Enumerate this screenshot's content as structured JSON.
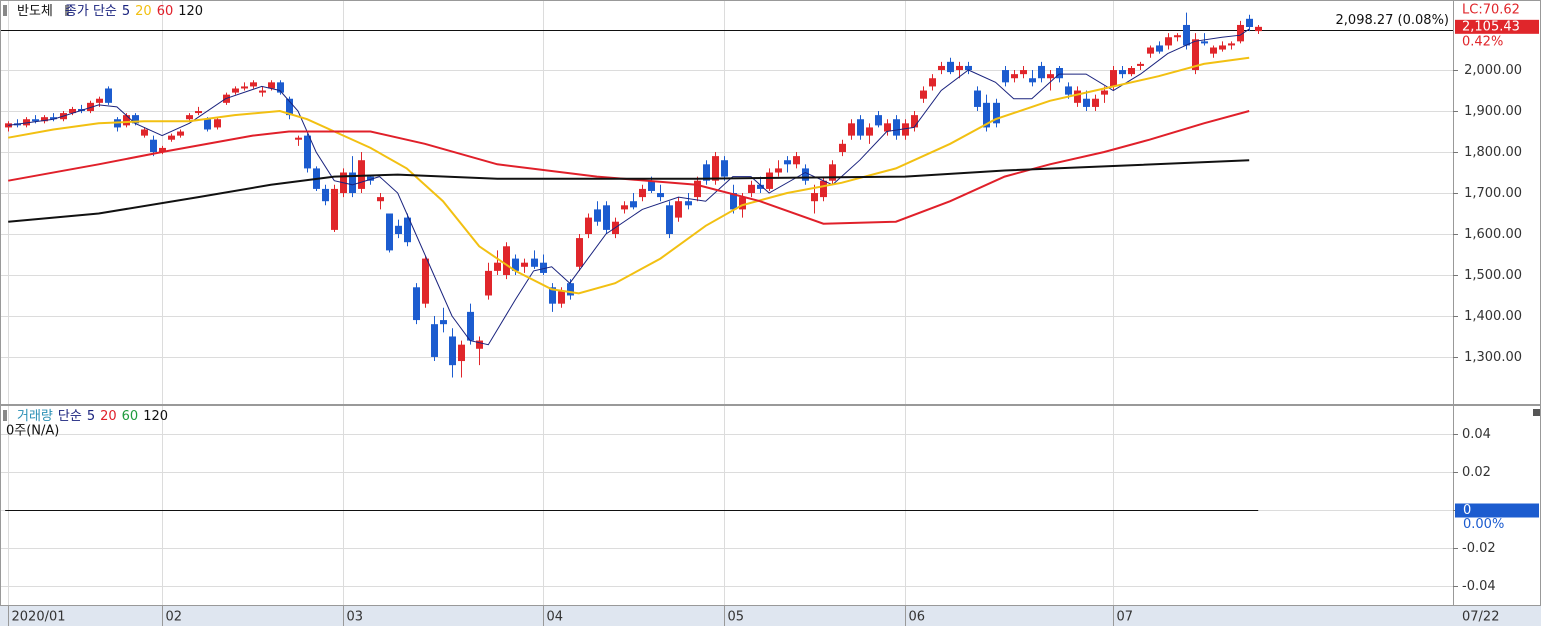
{
  "chart_data": {
    "type": "candlestick",
    "title": "반도체",
    "legend_prefix": "종가 단순",
    "up_color": "#e0262b",
    "down_color": "#1c5ccf",
    "xlim": [
      -0.9,
      159.5
    ],
    "xticks": [
      {
        "value": 0,
        "label": "2020/01"
      },
      {
        "value": 17,
        "label": "02"
      },
      {
        "value": 37,
        "label": "03"
      },
      {
        "value": 59,
        "label": "04"
      },
      {
        "value": 79,
        "label": "05"
      },
      {
        "value": 99,
        "label": "06"
      },
      {
        "value": 122,
        "label": "07"
      }
    ],
    "last_date": "07/22",
    "ylim": [
      1195,
      2166
    ],
    "yticks": [
      {
        "value": 1300,
        "label": "1,300.00"
      },
      {
        "value": 1400,
        "label": "1,400.00"
      },
      {
        "value": 1500,
        "label": "1,500.00"
      },
      {
        "value": 1600,
        "label": "1,600.00"
      },
      {
        "value": 1700,
        "label": "1,700.00"
      },
      {
        "value": 1800,
        "label": "1,800.00"
      },
      {
        "value": 1900,
        "label": "1,900.00"
      },
      {
        "value": 2000,
        "label": "2,000.00"
      }
    ],
    "grid": true,
    "ref_line": {
      "value": 2098.27,
      "label": "2,098.27 (0.08%)"
    },
    "lc_label": "LC:70.62",
    "last_price": {
      "value": 2105.43,
      "label": "2,105.43"
    },
    "change_label": "0.42%",
    "ohlc": [
      [
        1860,
        1875,
        1850,
        1870
      ],
      [
        1870,
        1880,
        1860,
        1865
      ],
      [
        1865,
        1885,
        1860,
        1880
      ],
      [
        1880,
        1890,
        1870,
        1875
      ],
      [
        1875,
        1890,
        1870,
        1885
      ],
      [
        1885,
        1895,
        1875,
        1880
      ],
      [
        1880,
        1900,
        1875,
        1895
      ],
      [
        1895,
        1910,
        1890,
        1905
      ],
      [
        1905,
        1915,
        1895,
        1900
      ],
      [
        1900,
        1925,
        1895,
        1920
      ],
      [
        1920,
        1935,
        1910,
        1930
      ],
      [
        1955,
        1960,
        1915,
        1920
      ],
      [
        1880,
        1885,
        1850,
        1860
      ],
      [
        1865,
        1895,
        1860,
        1890
      ],
      [
        1890,
        1895,
        1865,
        1870
      ],
      [
        1840,
        1860,
        1835,
        1855
      ],
      [
        1830,
        1840,
        1790,
        1800
      ],
      [
        1800,
        1815,
        1795,
        1810
      ],
      [
        1830,
        1845,
        1825,
        1840
      ],
      [
        1840,
        1855,
        1835,
        1850
      ],
      [
        1880,
        1895,
        1875,
        1890
      ],
      [
        1895,
        1910,
        1890,
        1900
      ],
      [
        1880,
        1885,
        1850,
        1855
      ],
      [
        1860,
        1885,
        1855,
        1880
      ],
      [
        1920,
        1945,
        1915,
        1940
      ],
      [
        1945,
        1960,
        1940,
        1955
      ],
      [
        1955,
        1970,
        1950,
        1960
      ],
      [
        1960,
        1975,
        1955,
        1970
      ],
      [
        1945,
        1960,
        1935,
        1950
      ],
      [
        1955,
        1975,
        1950,
        1970
      ],
      [
        1970,
        1975,
        1940,
        1945
      ],
      [
        1930,
        1935,
        1880,
        1890
      ],
      [
        1830,
        1840,
        1815,
        1835
      ],
      [
        1840,
        1845,
        1750,
        1760
      ],
      [
        1760,
        1765,
        1705,
        1710
      ],
      [
        1710,
        1720,
        1670,
        1680
      ],
      [
        1610,
        1720,
        1605,
        1710
      ],
      [
        1700,
        1760,
        1690,
        1750
      ],
      [
        1750,
        1790,
        1690,
        1700
      ],
      [
        1710,
        1800,
        1700,
        1780
      ],
      [
        1740,
        1745,
        1720,
        1730
      ],
      [
        1680,
        1700,
        1660,
        1690
      ],
      [
        1650,
        1650,
        1555,
        1560
      ],
      [
        1620,
        1635,
        1590,
        1600
      ],
      [
        1640,
        1650,
        1570,
        1580
      ],
      [
        1470,
        1480,
        1380,
        1390
      ],
      [
        1430,
        1545,
        1420,
        1540
      ],
      [
        1380,
        1400,
        1290,
        1300
      ],
      [
        1390,
        1420,
        1360,
        1380
      ],
      [
        1350,
        1370,
        1250,
        1280
      ],
      [
        1290,
        1340,
        1250,
        1330
      ],
      [
        1410,
        1430,
        1330,
        1340
      ],
      [
        1320,
        1350,
        1280,
        1340
      ],
      [
        1450,
        1530,
        1440,
        1510
      ],
      [
        1510,
        1560,
        1500,
        1530
      ],
      [
        1500,
        1580,
        1490,
        1570
      ],
      [
        1540,
        1550,
        1500,
        1510
      ],
      [
        1520,
        1540,
        1505,
        1530
      ],
      [
        1540,
        1560,
        1515,
        1520
      ],
      [
        1530,
        1550,
        1500,
        1505
      ],
      [
        1470,
        1480,
        1410,
        1430
      ],
      [
        1430,
        1470,
        1420,
        1460
      ],
      [
        1480,
        1490,
        1440,
        1450
      ],
      [
        1520,
        1600,
        1510,
        1590
      ],
      [
        1600,
        1650,
        1590,
        1640
      ],
      [
        1660,
        1680,
        1620,
        1630
      ],
      [
        1670,
        1680,
        1600,
        1610
      ],
      [
        1600,
        1640,
        1590,
        1630
      ],
      [
        1660,
        1680,
        1650,
        1670
      ],
      [
        1680,
        1700,
        1660,
        1665
      ],
      [
        1690,
        1720,
        1680,
        1710
      ],
      [
        1730,
        1740,
        1700,
        1705
      ],
      [
        1700,
        1720,
        1680,
        1690
      ],
      [
        1670,
        1680,
        1590,
        1600
      ],
      [
        1640,
        1690,
        1630,
        1680
      ],
      [
        1680,
        1700,
        1660,
        1670
      ],
      [
        1690,
        1740,
        1680,
        1730
      ],
      [
        1770,
        1780,
        1720,
        1730
      ],
      [
        1730,
        1800,
        1720,
        1790
      ],
      [
        1780,
        1790,
        1730,
        1740
      ],
      [
        1700,
        1720,
        1650,
        1660
      ],
      [
        1660,
        1700,
        1640,
        1690
      ],
      [
        1700,
        1730,
        1690,
        1720
      ],
      [
        1720,
        1740,
        1700,
        1710
      ],
      [
        1710,
        1760,
        1705,
        1750
      ],
      [
        1750,
        1780,
        1740,
        1760
      ],
      [
        1780,
        1790,
        1750,
        1770
      ],
      [
        1770,
        1800,
        1760,
        1790
      ],
      [
        1760,
        1770,
        1720,
        1730
      ],
      [
        1680,
        1720,
        1650,
        1700
      ],
      [
        1690,
        1740,
        1680,
        1730
      ],
      [
        1730,
        1780,
        1720,
        1770
      ],
      [
        1800,
        1830,
        1790,
        1820
      ],
      [
        1840,
        1880,
        1830,
        1870
      ],
      [
        1880,
        1890,
        1830,
        1840
      ],
      [
        1840,
        1870,
        1820,
        1860
      ],
      [
        1890,
        1900,
        1860,
        1865
      ],
      [
        1850,
        1880,
        1840,
        1870
      ],
      [
        1880,
        1890,
        1830,
        1840
      ],
      [
        1840,
        1880,
        1830,
        1870
      ],
      [
        1860,
        1900,
        1850,
        1890
      ],
      [
        1930,
        1960,
        1920,
        1950
      ],
      [
        1960,
        1990,
        1950,
        1980
      ],
      [
        2000,
        2020,
        1990,
        2010
      ],
      [
        2020,
        2030,
        1990,
        1995
      ],
      [
        2000,
        2020,
        1980,
        2010
      ],
      [
        2010,
        2020,
        1990,
        2000
      ],
      [
        1950,
        1960,
        1900,
        1910
      ],
      [
        1920,
        1940,
        1850,
        1860
      ],
      [
        1920,
        1930,
        1860,
        1870
      ],
      [
        2000,
        2010,
        1960,
        1970
      ],
      [
        1980,
        2000,
        1970,
        1990
      ],
      [
        1990,
        2010,
        1980,
        2000
      ],
      [
        1980,
        2000,
        1960,
        1970
      ],
      [
        2010,
        2020,
        1970,
        1980
      ],
      [
        1980,
        2000,
        1950,
        1990
      ],
      [
        2005,
        2010,
        1970,
        1980
      ],
      [
        1960,
        1970,
        1930,
        1940
      ],
      [
        1920,
        1960,
        1910,
        1950
      ],
      [
        1930,
        1950,
        1900,
        1910
      ],
      [
        1910,
        1940,
        1900,
        1930
      ],
      [
        1940,
        1960,
        1920,
        1950
      ],
      [
        1960,
        2010,
        1950,
        2000
      ],
      [
        2000,
        2010,
        1980,
        1990
      ],
      [
        1990,
        2010,
        1985,
        2005
      ],
      [
        2010,
        2020,
        2000,
        2015
      ],
      [
        2040,
        2060,
        2030,
        2055
      ],
      [
        2060,
        2070,
        2040,
        2045
      ],
      [
        2060,
        2090,
        2050,
        2080
      ],
      [
        2080,
        2090,
        2070,
        2085
      ],
      [
        2110,
        2140,
        2050,
        2060
      ],
      [
        2000,
        2090,
        1990,
        2075
      ],
      [
        2070,
        2090,
        2060,
        2065
      ],
      [
        2040,
        2060,
        2030,
        2055
      ],
      [
        2050,
        2070,
        2045,
        2060
      ],
      [
        2060,
        2070,
        2050,
        2065
      ],
      [
        2070,
        2120,
        2065,
        2110
      ],
      [
        2125,
        2135,
        2095,
        2105
      ],
      [
        2095,
        2110,
        2088,
        2105.43
      ]
    ],
    "series": [
      {
        "name": "5",
        "color": "#1a237e",
        "width": 1,
        "x": [
          0,
          5,
          10,
          12,
          14,
          17,
          20,
          24,
          28,
          30,
          32,
          34,
          36,
          38,
          41,
          43,
          45,
          47,
          49,
          51,
          53,
          56,
          58,
          60,
          62,
          64,
          66,
          70,
          74,
          77,
          80,
          82,
          84,
          88,
          91,
          94,
          97,
          100,
          103,
          106,
          109,
          111,
          113,
          116,
          119,
          122,
          125,
          128,
          131,
          134,
          136,
          137
        ],
        "values": [
          1865,
          1880,
          1915,
          1910,
          1870,
          1840,
          1870,
          1930,
          1960,
          1950,
          1900,
          1800,
          1730,
          1720,
          1740,
          1700,
          1600,
          1500,
          1400,
          1340,
          1330,
          1440,
          1510,
          1520,
          1480,
          1540,
          1600,
          1660,
          1690,
          1680,
          1740,
          1740,
          1700,
          1750,
          1720,
          1780,
          1850,
          1860,
          1950,
          2000,
          1970,
          1930,
          1930,
          1990,
          1990,
          1950,
          1990,
          2040,
          2070,
          2080,
          2085,
          2100
        ]
      },
      {
        "name": "20",
        "color": "#f2c012",
        "width": 2,
        "x": [
          0,
          5,
          10,
          15,
          20,
          25,
          30,
          33,
          36,
          40,
          44,
          48,
          52,
          56,
          60,
          63,
          67,
          72,
          77,
          81,
          86,
          92,
          98,
          104,
          109,
          115,
          121,
          127,
          132,
          137
        ],
        "values": [
          1835,
          1855,
          1870,
          1875,
          1875,
          1890,
          1900,
          1880,
          1850,
          1810,
          1760,
          1680,
          1570,
          1510,
          1465,
          1455,
          1480,
          1540,
          1620,
          1670,
          1700,
          1725,
          1760,
          1820,
          1880,
          1925,
          1955,
          1985,
          2015,
          2030
        ]
      },
      {
        "name": "60",
        "color": "#e0202a",
        "width": 2,
        "x": [
          0,
          10,
          17,
          27,
          31,
          40,
          46,
          54,
          65,
          76,
          83,
          90,
          98,
          104,
          110,
          115,
          121,
          126,
          132,
          137
        ],
        "values": [
          1730,
          1770,
          1800,
          1840,
          1850,
          1850,
          1820,
          1770,
          1740,
          1720,
          1680,
          1625,
          1630,
          1680,
          1740,
          1770,
          1800,
          1830,
          1870,
          1900
        ]
      },
      {
        "name": "120",
        "color": "#111111",
        "width": 2,
        "x": [
          0,
          10,
          21,
          29,
          36,
          43,
          54,
          76,
          99,
          110,
          121,
          137
        ],
        "values": [
          1630,
          1650,
          1690,
          1720,
          1740,
          1745,
          1735,
          1735,
          1740,
          1755,
          1765,
          1780
        ]
      }
    ],
    "volume_panel": {
      "title": "거래량",
      "legend_prefix": "단순",
      "ma_names": [
        "5",
        "20",
        "60",
        "120"
      ],
      "ma_colors": [
        "#1a237e",
        "#e0202a",
        "#1e9a3c",
        "#111111"
      ],
      "note": "0주(N/A)",
      "y2lim": [
        -0.0505,
        0.0542
      ],
      "y2ticks": [
        -0.04,
        -0.02,
        0,
        0.02,
        0.04
      ],
      "zero_line": 0,
      "zero_label": "0.00%"
    }
  }
}
